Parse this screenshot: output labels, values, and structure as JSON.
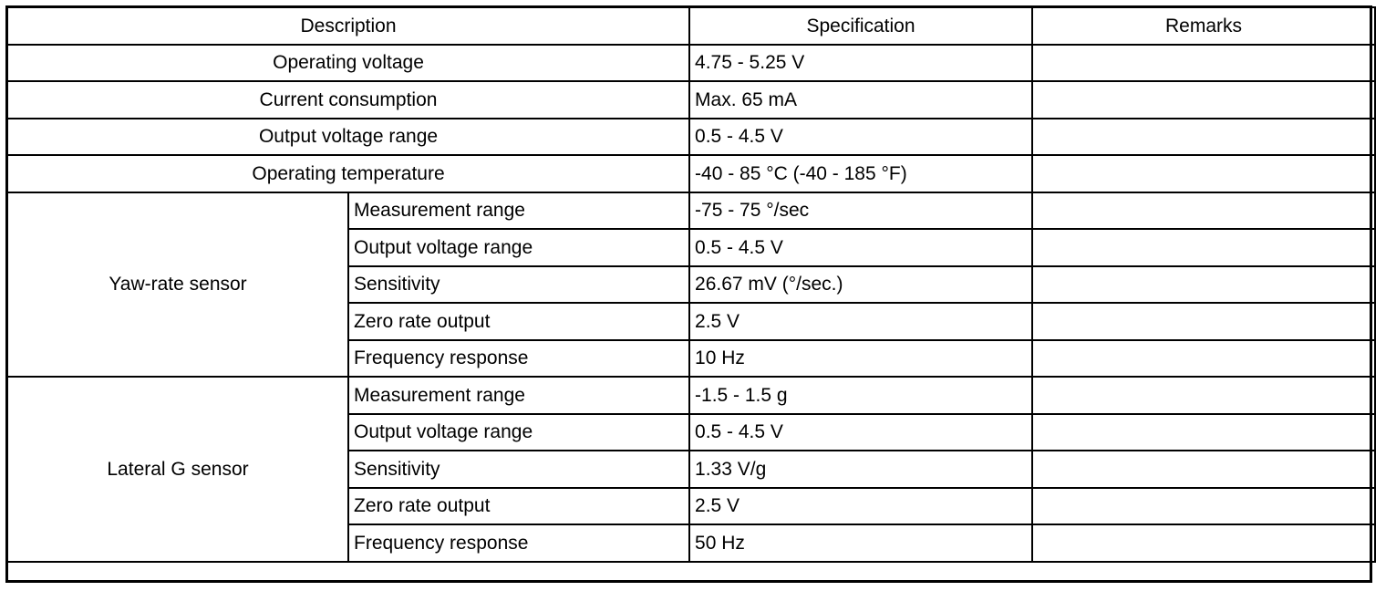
{
  "table": {
    "headers": {
      "description": "Description",
      "specification": "Specification",
      "remarks": "Remarks"
    },
    "general_rows": [
      {
        "description": "Operating voltage",
        "specification": "4.75 - 5.25 V",
        "remarks": ""
      },
      {
        "description": "Current consumption",
        "specification": "Max. 65 mA",
        "remarks": ""
      },
      {
        "description": "Output voltage range",
        "specification": "0.5 - 4.5 V",
        "remarks": ""
      },
      {
        "description": "Operating temperature",
        "specification": "-40 - 85 °C (-40 - 185 °F)",
        "remarks": ""
      }
    ],
    "groups": [
      {
        "name": "Yaw-rate sensor",
        "rows": [
          {
            "item": "Measurement range",
            "specification": "-75 - 75 °/sec",
            "remarks": ""
          },
          {
            "item": "Output voltage range",
            "specification": "0.5 - 4.5 V",
            "remarks": ""
          },
          {
            "item": "Sensitivity",
            "specification": "26.67 mV (°/sec.)",
            "remarks": ""
          },
          {
            "item": "Zero rate output",
            "specification": "2.5 V",
            "remarks": ""
          },
          {
            "item": "Frequency response",
            "specification": "10 Hz",
            "remarks": ""
          }
        ]
      },
      {
        "name": "Lateral G sensor",
        "rows": [
          {
            "item": "Measurement range",
            "specification": "-1.5 - 1.5 g",
            "remarks": ""
          },
          {
            "item": "Output voltage range",
            "specification": "0.5 - 4.5 V",
            "remarks": ""
          },
          {
            "item": "Sensitivity",
            "specification": "1.33 V/g",
            "remarks": ""
          },
          {
            "item": "Zero rate output",
            "specification": "2.5 V",
            "remarks": ""
          },
          {
            "item": "Frequency response",
            "specification": "50 Hz",
            "remarks": ""
          }
        ]
      }
    ]
  }
}
